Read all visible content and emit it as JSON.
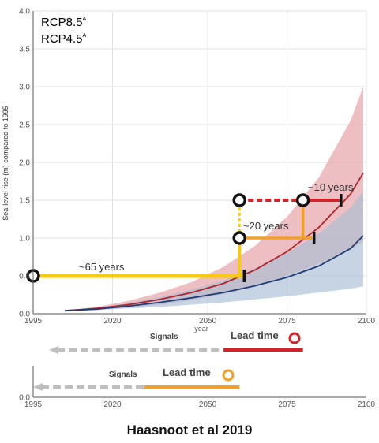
{
  "chart_data": {
    "type": "line",
    "ylabel": "Sea-level rise (m) compared to 1995",
    "xlabel": "year",
    "xlim": [
      1995,
      2100
    ],
    "ylim": [
      0,
      4.0
    ],
    "x_ticks": [
      1995,
      2020,
      2050,
      2075,
      2100
    ],
    "x_tick_labels": [
      "1995",
      "2020",
      "2050",
      "2075",
      "2100"
    ],
    "y_ticks": [
      0,
      0.5,
      1.0,
      1.5,
      2.0,
      2.5,
      3.0,
      3.5,
      4.0
    ],
    "y_tick_labels": [
      "0.0",
      "0.5",
      "1.0",
      "1.5",
      "2.0",
      "2.5",
      "3.0",
      "3.5",
      "4.0"
    ],
    "grid": true,
    "legend_position": "top-left",
    "series": [
      {
        "name": "RCP8.5",
        "superscript": "A",
        "color": "#b0242b",
        "band_color": "#e8a9ae",
        "x": [
          2005,
          2015,
          2025,
          2035,
          2045,
          2055,
          2065,
          2075,
          2085,
          2095,
          2099
        ],
        "values": [
          0.04,
          0.07,
          0.12,
          0.19,
          0.28,
          0.4,
          0.58,
          0.82,
          1.14,
          1.58,
          1.86
        ],
        "lower": [
          0.04,
          0.05,
          0.08,
          0.12,
          0.18,
          0.26,
          0.36,
          0.5,
          0.66,
          0.85,
          0.95
        ],
        "upper": [
          0.04,
          0.09,
          0.17,
          0.28,
          0.42,
          0.62,
          0.9,
          1.28,
          1.8,
          2.55,
          3.0
        ]
      },
      {
        "name": "RCP4.5",
        "superscript": "A",
        "color": "#1f3e78",
        "band_color": "#a9bdd4",
        "x": [
          2005,
          2015,
          2025,
          2035,
          2045,
          2055,
          2065,
          2075,
          2085,
          2095,
          2099
        ],
        "values": [
          0.04,
          0.06,
          0.1,
          0.15,
          0.21,
          0.28,
          0.37,
          0.48,
          0.63,
          0.86,
          1.03
        ],
        "lower": [
          0.04,
          0.05,
          0.07,
          0.09,
          0.12,
          0.15,
          0.19,
          0.23,
          0.28,
          0.33,
          0.36
        ],
        "upper": [
          0.04,
          0.08,
          0.14,
          0.22,
          0.32,
          0.44,
          0.6,
          0.8,
          1.06,
          1.4,
          1.62
        ]
      }
    ],
    "tipping_points": [
      {
        "x": 1995,
        "y": 0.5
      },
      {
        "x": 2060,
        "y": 1.0
      },
      {
        "x": 2060,
        "y": 1.5
      },
      {
        "x": 2080,
        "y": 1.5
      }
    ],
    "pathway_colors": {
      "yellow": "#f6c912",
      "orange": "#f0a02a",
      "red": "#d1232a",
      "grey": "#bfbfbf"
    },
    "annotations": [
      {
        "text": "~65 years",
        "x": 2010,
        "y": 0.6
      },
      {
        "text": "~20 years",
        "x": 2062,
        "y": 1.12
      },
      {
        "text": "~10 years",
        "x": 2083,
        "y": 1.62
      }
    ],
    "lead_panels": [
      {
        "signals_label": "Signals",
        "lead_label": "Lead time",
        "color": "#d1232a",
        "signal_x": [
          2000,
          2055
        ],
        "lead_x": [
          2055,
          2080
        ]
      },
      {
        "signals_label": "Signals",
        "lead_label": "Lead time",
        "color": "#f0a02a",
        "signal_x": [
          1995,
          2030
        ],
        "lead_x": [
          2030,
          2060
        ]
      }
    ],
    "bottom_axis": {
      "y_tick_label": "0.0",
      "x_ticks": [
        1995,
        2020,
        2050,
        2075,
        2100
      ],
      "x_tick_labels": [
        "1995",
        "2020",
        "2050",
        "2075",
        "2100"
      ]
    },
    "source": "Haasnoot et al 2019"
  }
}
